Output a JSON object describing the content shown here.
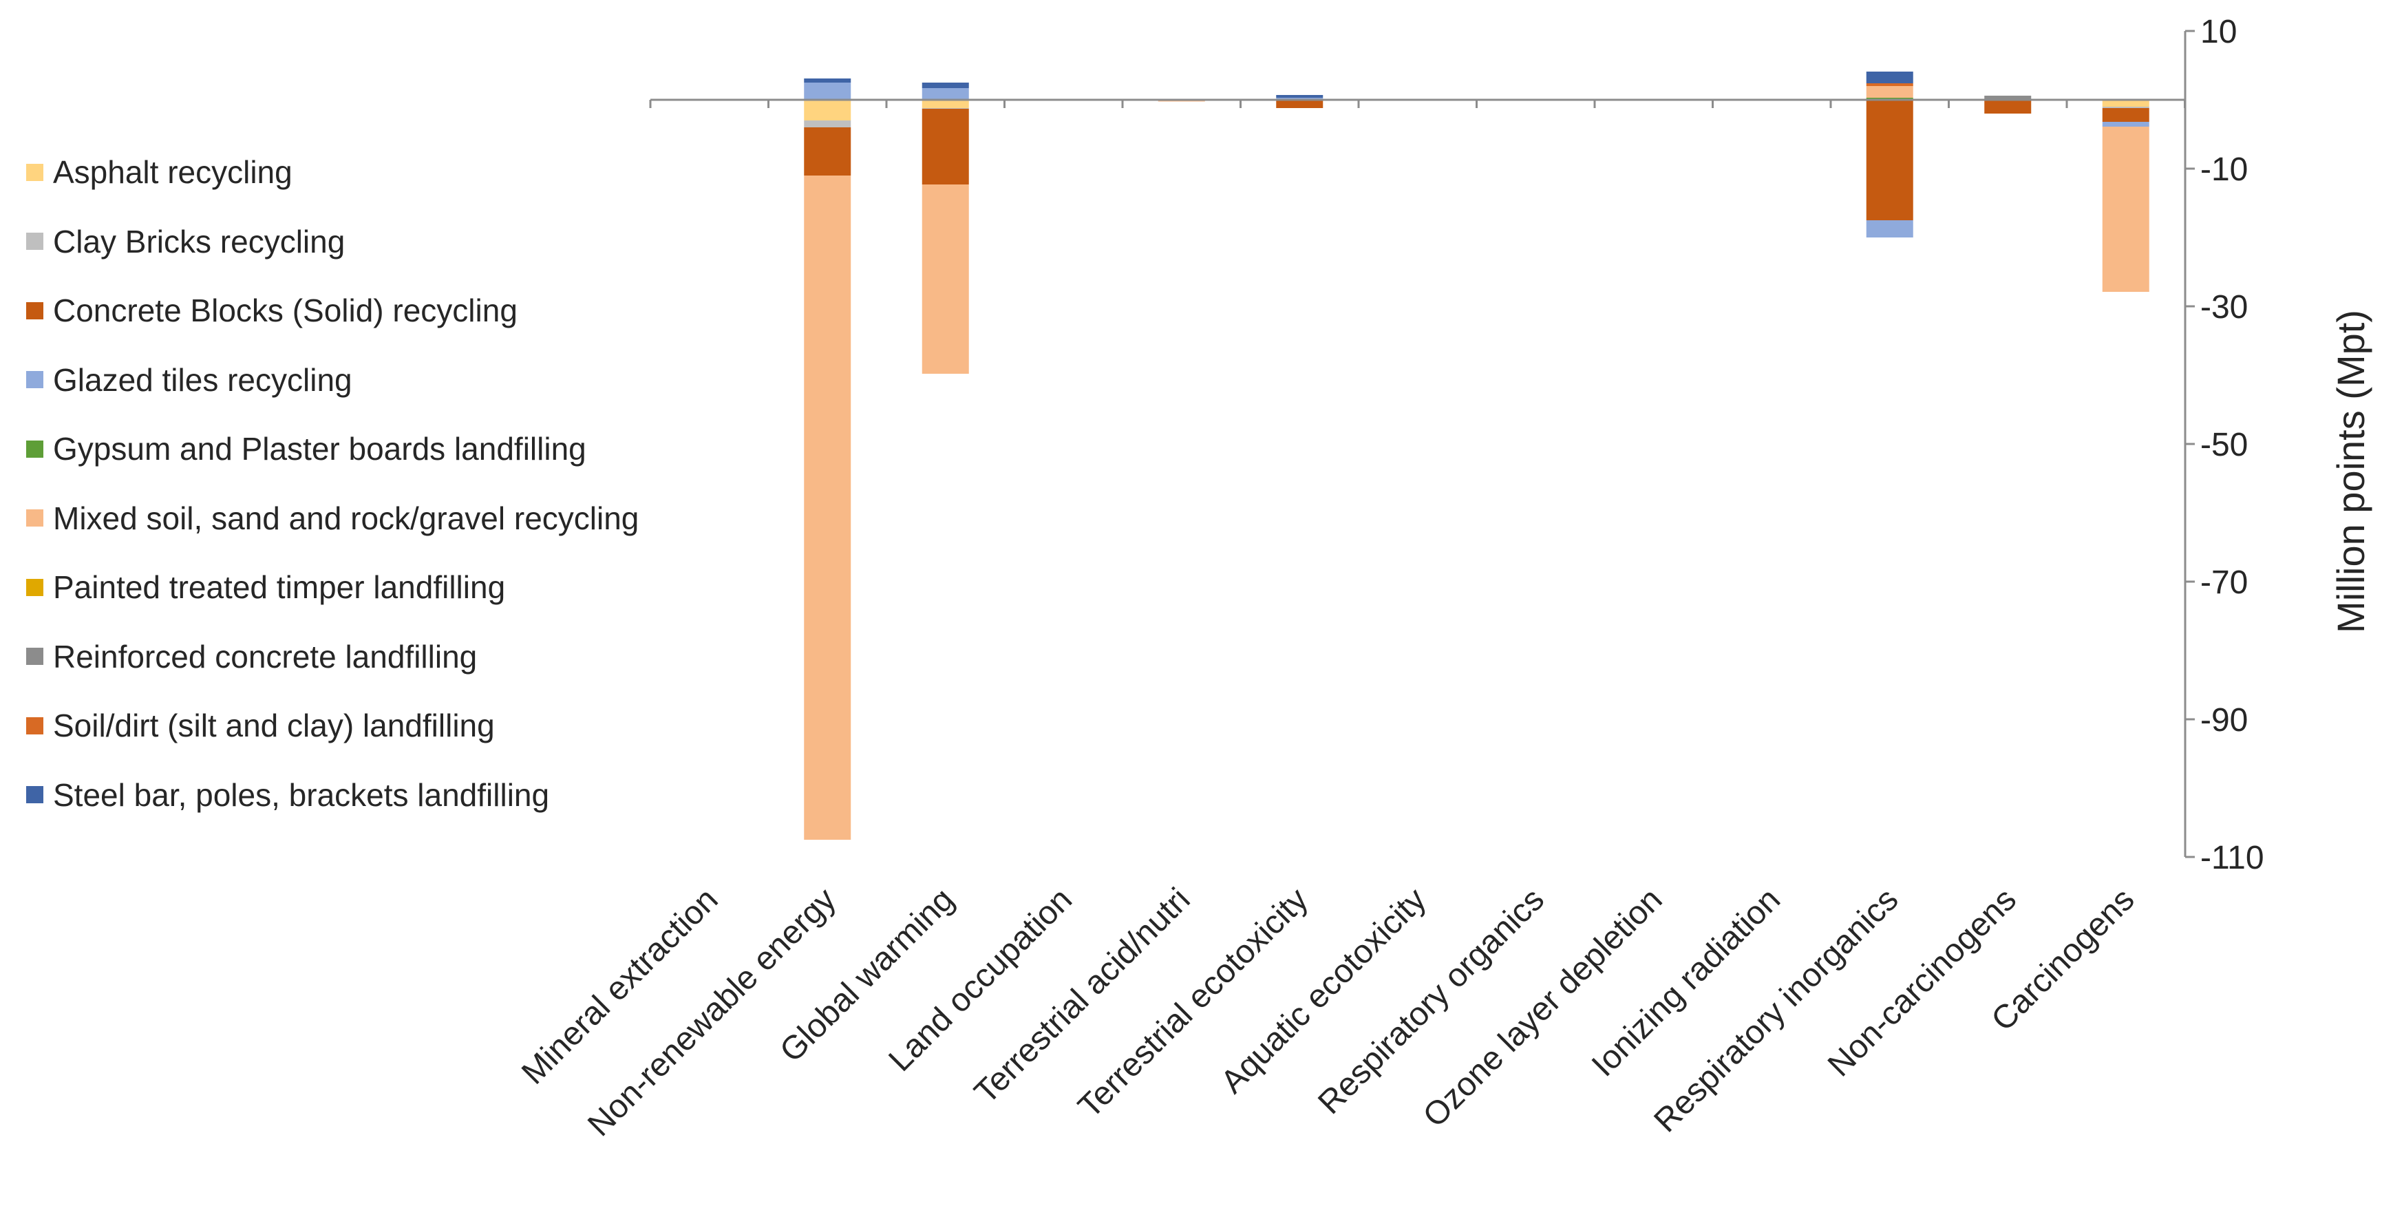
{
  "chart_data": {
    "type": "bar",
    "stacked": true,
    "title": "",
    "xlabel": "",
    "ylabel": "Million points (Mpt)",
    "ylim": [
      -110,
      10
    ],
    "yticks": [
      10,
      -10,
      -30,
      -50,
      -70,
      -90,
      -110
    ],
    "grid": false,
    "legend_position": "left",
    "categories": [
      "Mineral extraction",
      "Non-renewable energy",
      "Global warming",
      "Land occupation",
      "Terrestrial acid/nutri",
      "Terrestrial ecotoxicity",
      "Aquatic ecotoxicity",
      "Respiratory organics",
      "Ozone layer depletion",
      "Ionizing radiation",
      "Respiratory inorganics",
      "Non-carcinogens",
      "Carcinogens"
    ],
    "series": [
      {
        "name": "Asphalt recycling",
        "color": "#FFD47F",
        "values": [
          0,
          -3,
          -1.2,
          0,
          -0.1,
          0,
          0,
          0,
          0,
          0,
          0,
          0,
          -1
        ]
      },
      {
        "name": "Clay Bricks recycling",
        "color": "#BFBFBF",
        "values": [
          0,
          -1,
          -0.1,
          0,
          0,
          0,
          0,
          0,
          0,
          0,
          0,
          0,
          -0.2
        ]
      },
      {
        "name": "Concrete Blocks (Solid) recycling",
        "color": "#C55A11",
        "values": [
          0,
          -7,
          -11,
          0,
          0,
          -1.2,
          0,
          0,
          0,
          0,
          -17.5,
          -2,
          -2
        ]
      },
      {
        "name": "Glazed tiles recycling",
        "color": "#8FAADC",
        "values": [
          0,
          2.5,
          1.7,
          0,
          0,
          0.3,
          0,
          0,
          0,
          0,
          -2.5,
          0,
          -0.7
        ]
      },
      {
        "name": "Gypsum and Plaster boards landfilling",
        "color": "#5E9E37",
        "values": [
          0,
          0,
          0,
          0,
          0,
          0,
          0,
          0,
          0,
          0,
          0.3,
          0,
          0
        ]
      },
      {
        "name": "Mixed soil, sand and rock/gravel recycling",
        "color": "#F8B987",
        "values": [
          0,
          -96.5,
          -27.5,
          0,
          -0.1,
          0,
          0,
          0,
          0,
          0,
          1.7,
          0,
          -24
        ]
      },
      {
        "name": "Painted treated timper landfilling",
        "color": "#E0A800",
        "values": [
          0,
          0,
          0,
          0,
          0,
          0,
          0,
          0,
          0,
          0,
          0,
          0,
          0
        ]
      },
      {
        "name": "Reinforced concrete landfilling",
        "color": "#8C8C8C",
        "values": [
          0,
          0,
          0,
          0,
          0,
          0,
          0,
          0,
          0,
          0,
          0,
          0.6,
          0
        ]
      },
      {
        "name": "Soil/dirt (silt and clay) landfilling",
        "color": "#D86A24",
        "values": [
          0,
          0,
          0,
          0,
          0,
          0,
          0,
          0,
          0,
          0,
          0.4,
          0,
          0
        ]
      },
      {
        "name": "Steel bar, poles, brackets landfilling",
        "color": "#3F64A6",
        "values": [
          0,
          0.6,
          0.8,
          0,
          0,
          0.4,
          0,
          0,
          0,
          0,
          1.7,
          0,
          0
        ]
      }
    ]
  }
}
